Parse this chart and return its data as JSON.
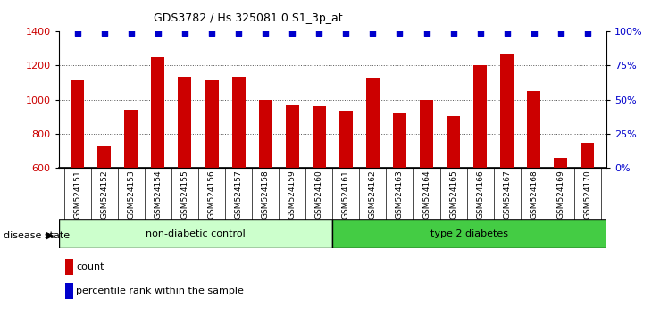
{
  "title": "GDS3782 / Hs.325081.0.S1_3p_at",
  "samples": [
    "GSM524151",
    "GSM524152",
    "GSM524153",
    "GSM524154",
    "GSM524155",
    "GSM524156",
    "GSM524157",
    "GSM524158",
    "GSM524159",
    "GSM524160",
    "GSM524161",
    "GSM524162",
    "GSM524163",
    "GSM524164",
    "GSM524165",
    "GSM524166",
    "GSM524167",
    "GSM524168",
    "GSM524169",
    "GSM524170"
  ],
  "counts": [
    1115,
    725,
    940,
    1250,
    1135,
    1115,
    1135,
    1000,
    965,
    960,
    935,
    1130,
    920,
    1000,
    905,
    1205,
    1265,
    1050,
    655,
    745
  ],
  "percentile_values": [
    99,
    99,
    99,
    99,
    99,
    99,
    99,
    99,
    99,
    99,
    99,
    99,
    99,
    99,
    99,
    99,
    99,
    99,
    99,
    99
  ],
  "non_diabetic_count": 10,
  "type2_count": 10,
  "bar_color": "#cc0000",
  "dot_color": "#0000cc",
  "ylim_left": [
    600,
    1400
  ],
  "ylim_right": [
    0,
    100
  ],
  "yticks_left": [
    600,
    800,
    1000,
    1200,
    1400
  ],
  "yticks_right": [
    0,
    25,
    50,
    75,
    100
  ],
  "grid_values": [
    800,
    1000,
    1200
  ],
  "grid_color": "#555555",
  "bg_color": "#ffffff",
  "non_diabetic_color": "#ccffcc",
  "type2_color": "#44cc44",
  "label_area_bg": "#cccccc",
  "legend_count_color": "#cc0000",
  "legend_pct_color": "#0000cc",
  "bar_width": 0.5
}
